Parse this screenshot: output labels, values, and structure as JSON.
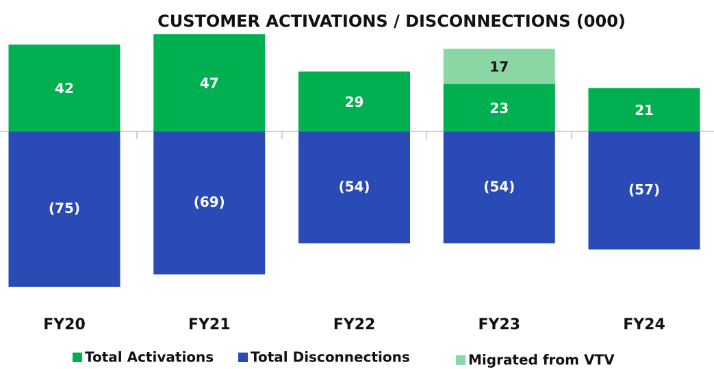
{
  "chart_data": {
    "type": "bar",
    "stacked": true,
    "title": "CUSTOMER ACTIVATIONS / DISCONNECTIONS (000)",
    "categories": [
      "FY20",
      "FY21",
      "FY22",
      "FY23",
      "FY24"
    ],
    "series": [
      {
        "name": "Total Activations",
        "color": "#00b050",
        "values": [
          42,
          47,
          29,
          23,
          21
        ]
      },
      {
        "name": "Total Disconnections",
        "color": "#2a4bb5",
        "values": [
          -75,
          -69,
          -54,
          -54,
          -57
        ],
        "value_labels": [
          "(75)",
          "(69)",
          "(54)",
          "(54)",
          "(57)"
        ]
      },
      {
        "name": "Migrated from VTV",
        "color": "#8ad6a4",
        "values": [
          null,
          null,
          null,
          17,
          null
        ]
      }
    ],
    "ylim": [
      -80,
      50
    ]
  }
}
